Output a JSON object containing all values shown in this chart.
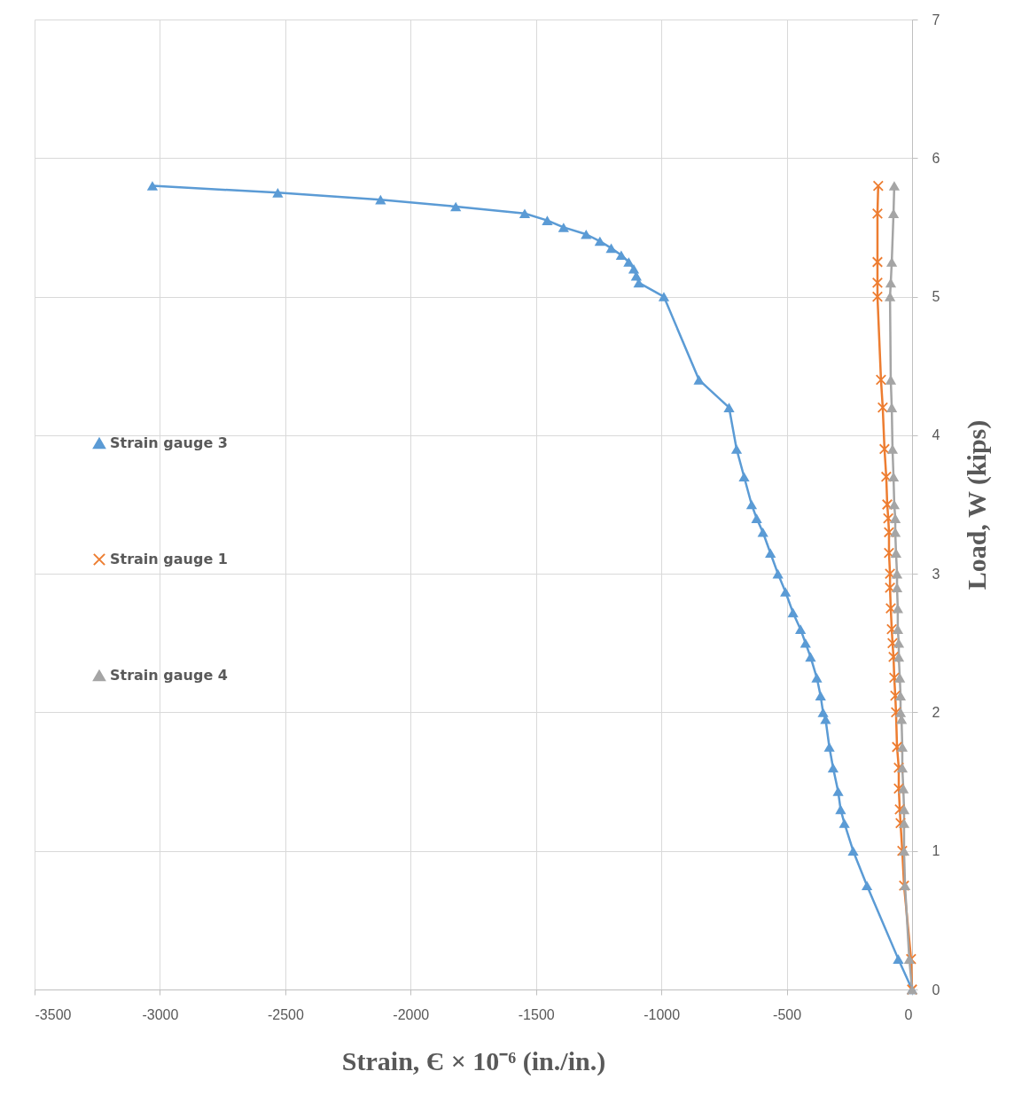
{
  "chart_data": {
    "type": "line",
    "xlabel": "Strain, Є × 10⁻⁶ (in./in.)",
    "ylabel": "Load, W (kips)",
    "xlim": [
      -3500,
      0
    ],
    "xticks": [
      -3500,
      -3000,
      -2500,
      -2000,
      -1500,
      -1000,
      -500,
      0
    ],
    "ylim": [
      0,
      7
    ],
    "yticks": [
      0,
      1,
      2,
      3,
      4,
      5,
      6,
      7
    ],
    "grid": true,
    "legend": "left",
    "series": [
      {
        "name": "Strain gauge 3",
        "color": "#5b9bd5",
        "marker": "triangle",
        "x": [
          -3030,
          -2530,
          -2120,
          -1820,
          -1545,
          -1455,
          -1390,
          -1300,
          -1245,
          -1200,
          -1160,
          -1130,
          -1110,
          -1100,
          -1090,
          -990,
          -850,
          -730,
          -700,
          -670,
          -640,
          -620,
          -595,
          -565,
          -535,
          -505,
          -475,
          -445,
          -425,
          -405,
          -380,
          -365,
          -355,
          -345,
          -330,
          -315,
          -295,
          -285,
          -270,
          -235,
          -180,
          -55,
          0
        ],
        "values": [
          5.8,
          5.75,
          5.7,
          5.65,
          5.6,
          5.55,
          5.5,
          5.45,
          5.4,
          5.35,
          5.3,
          5.25,
          5.2,
          5.15,
          5.1,
          5.0,
          4.4,
          4.2,
          3.9,
          3.7,
          3.5,
          3.4,
          3.3,
          3.15,
          3.0,
          2.87,
          2.72,
          2.6,
          2.5,
          2.4,
          2.25,
          2.12,
          2.0,
          1.95,
          1.75,
          1.6,
          1.43,
          1.3,
          1.2,
          1.0,
          0.75,
          0.22,
          0
        ]
      },
      {
        "name": "Strain gauge 1",
        "color": "#ed7d31",
        "marker": "cross",
        "x": [
          -135,
          -138,
          -138,
          -138,
          -138,
          -124,
          -117,
          -110,
          -103,
          -99,
          -95,
          -92,
          -92,
          -88,
          -88,
          -85,
          -81,
          -78,
          -74,
          -71,
          -67,
          -64,
          -60,
          -53,
          -53,
          -49,
          -46,
          -39,
          -32,
          -4,
          0
        ],
        "values": [
          5.8,
          5.6,
          5.25,
          5.1,
          5.0,
          4.4,
          4.2,
          3.9,
          3.7,
          3.5,
          3.4,
          3.3,
          3.15,
          3.0,
          2.9,
          2.75,
          2.6,
          2.5,
          2.4,
          2.25,
          2.12,
          2.0,
          1.75,
          1.6,
          1.45,
          1.3,
          1.2,
          1.0,
          0.75,
          0.22,
          0
        ]
      },
      {
        "name": "Strain gauge 4",
        "color": "#a5a5a5",
        "marker": "triangle",
        "x": [
          -71,
          -74,
          -81,
          -85,
          -88,
          -85,
          -81,
          -78,
          -74,
          -71,
          -67,
          -67,
          -64,
          -60,
          -60,
          -57,
          -57,
          -53,
          -53,
          -49,
          -46,
          -46,
          -42,
          -39,
          -39,
          -35,
          -32,
          -32,
          -32,
          -28,
          -11,
          0
        ],
        "values": [
          5.8,
          5.6,
          5.25,
          5.1,
          5.0,
          4.4,
          4.2,
          3.9,
          3.7,
          3.5,
          3.4,
          3.3,
          3.15,
          3.0,
          2.9,
          2.75,
          2.6,
          2.5,
          2.4,
          2.25,
          2.12,
          2.0,
          1.95,
          1.75,
          1.6,
          1.45,
          1.3,
          1.2,
          1.0,
          0.75,
          0.22,
          0
        ]
      }
    ]
  }
}
